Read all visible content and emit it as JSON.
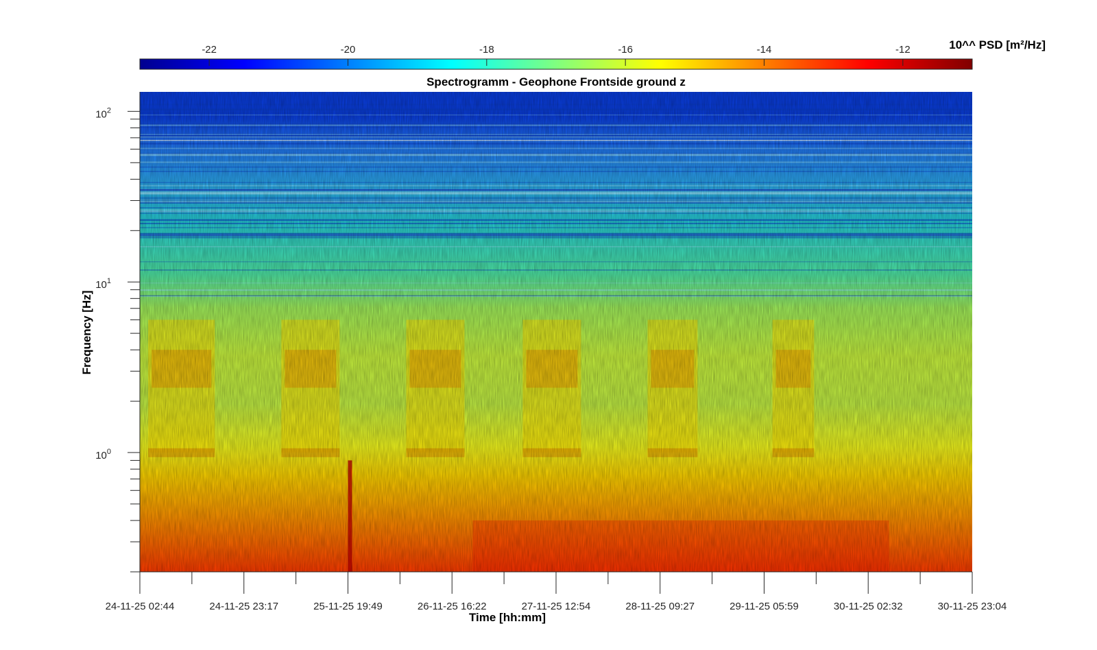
{
  "chart_data": {
    "type": "heatmap",
    "title": "Spectrogramm - Geophone Frontside ground z",
    "xlabel": "Time [hh:mm]",
    "ylabel": "Frequency [Hz]",
    "x_tick_labels": [
      "24-11-25 02:44",
      "24-11-25 23:17",
      "25-11-25 19:49",
      "26-11-25 16:22",
      "27-11-25 12:54",
      "28-11-25 09:27",
      "29-11-25 05:59",
      "30-11-25 02:32",
      "30-11-25 23:04"
    ],
    "y_scale": "log",
    "ylim": [
      0.2,
      130
    ],
    "y_major_ticks": [
      {
        "value": 100,
        "base": "10",
        "exp": "2"
      },
      {
        "value": 10,
        "base": "10",
        "exp": "1"
      },
      {
        "value": 1,
        "base": "10",
        "exp": "0"
      }
    ],
    "colorbar": {
      "label": "10^^ PSD [m²/Hz]",
      "range": [
        -23,
        -11
      ],
      "ticks": [
        -22,
        -20,
        -18,
        -16,
        -14,
        -12
      ],
      "tick_labels": [
        "-22",
        "-20",
        "-18",
        "-16",
        "-14",
        "-12"
      ],
      "colormap": "jet"
    },
    "activity_bursts": [
      {
        "day": "24-11",
        "fraction_start": 0.01,
        "fraction_end": 0.09
      },
      {
        "day": "25-11",
        "fraction_start": 0.17,
        "fraction_end": 0.24
      },
      {
        "day": "26-11",
        "fraction_start": 0.32,
        "fraction_end": 0.39
      },
      {
        "day": "27-11",
        "fraction_start": 0.46,
        "fraction_end": 0.53
      },
      {
        "day": "28-11",
        "fraction_start": 0.61,
        "fraction_end": 0.67
      },
      {
        "day": "29-11",
        "fraction_start": 0.76,
        "fraction_end": 0.81
      }
    ]
  }
}
